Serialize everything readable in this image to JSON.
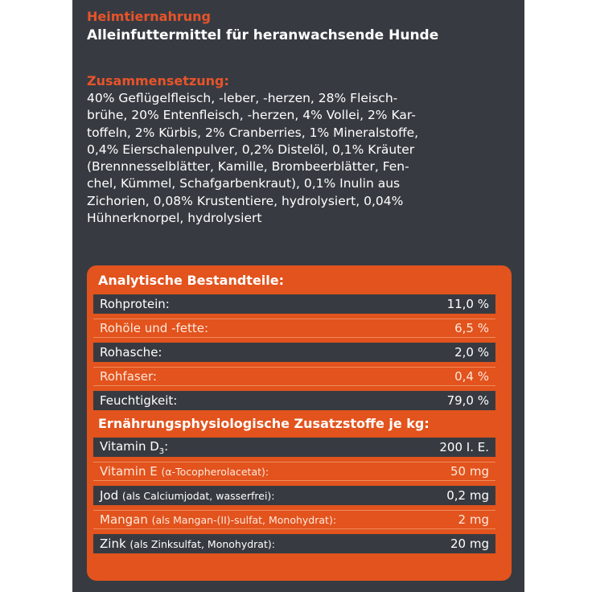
{
  "product": {
    "category": "Heimtiernahrung",
    "type": "Alleinfuttermittel  für heranwachsende Hunde"
  },
  "composition": {
    "heading": "Zusammensetzung:",
    "lines": [
      "40% Geflügelfleisch, -leber, -herzen, 28% Fleisch-",
      "brühe, 20% Entenfleisch, -herzen, 4% Vollei, 2% Kar-",
      "toffeln, 2% Kürbis, 2% Cranberries, 1% Mineralstoffe,",
      "0,4% Eierschalenpulver, 0,2% Distelöl, 0,1% Kräuter",
      "(Brennnesselblätter, Kamille, Brombeerblätter, Fen-",
      "chel, Kümmel, Schafgarbenkraut), 0,1% Inulin aus",
      "Zichorien, 0,08% Krustentiere, hydrolysiert, 0,04%",
      "Hühnerknorpel, hydrolysiert"
    ]
  },
  "analysis": {
    "heading": "Analytische Bestandteile:",
    "rows": [
      {
        "name": "Rohprotein:",
        "value": "11,0 %"
      },
      {
        "name": "Rohöle und -fette:",
        "value": "6,5 %"
      },
      {
        "name": "Rohasche:",
        "value": "2,0 %"
      },
      {
        "name": "Rohfaser:",
        "value": "0,4 %"
      },
      {
        "name": "Feuchtigkeit:",
        "value": "79,0 %"
      }
    ]
  },
  "additives": {
    "heading": "Ernährungsphysiologische Zusatzstoffe je kg:",
    "rows": [
      {
        "name": "Vitamin D",
        "sub": "3",
        "suffix": ":",
        "detail": "",
        "value": "200 I. E."
      },
      {
        "name": "Vitamin E ",
        "sub": "",
        "suffix": "",
        "detail": "(α-Tocopherolacetat):",
        "value": "50 mg"
      },
      {
        "name": "Jod ",
        "sub": "",
        "suffix": "",
        "detail": "(als Calciumjodat, wasserfrei):",
        "value": "0,2 mg"
      },
      {
        "name": "Mangan ",
        "sub": "",
        "suffix": "",
        "detail": "(als Mangan-(II)-sulfat, Monohydrat):",
        "value": "2 mg"
      },
      {
        "name": "Zink ",
        "sub": "",
        "suffix": "",
        "detail": "(als Zinksulfat, Monohydrat):",
        "value": "20 mg"
      }
    ]
  },
  "colors": {
    "panel": "#373b41",
    "accent": "#e2531d",
    "heading_orange": "#e8532a"
  }
}
